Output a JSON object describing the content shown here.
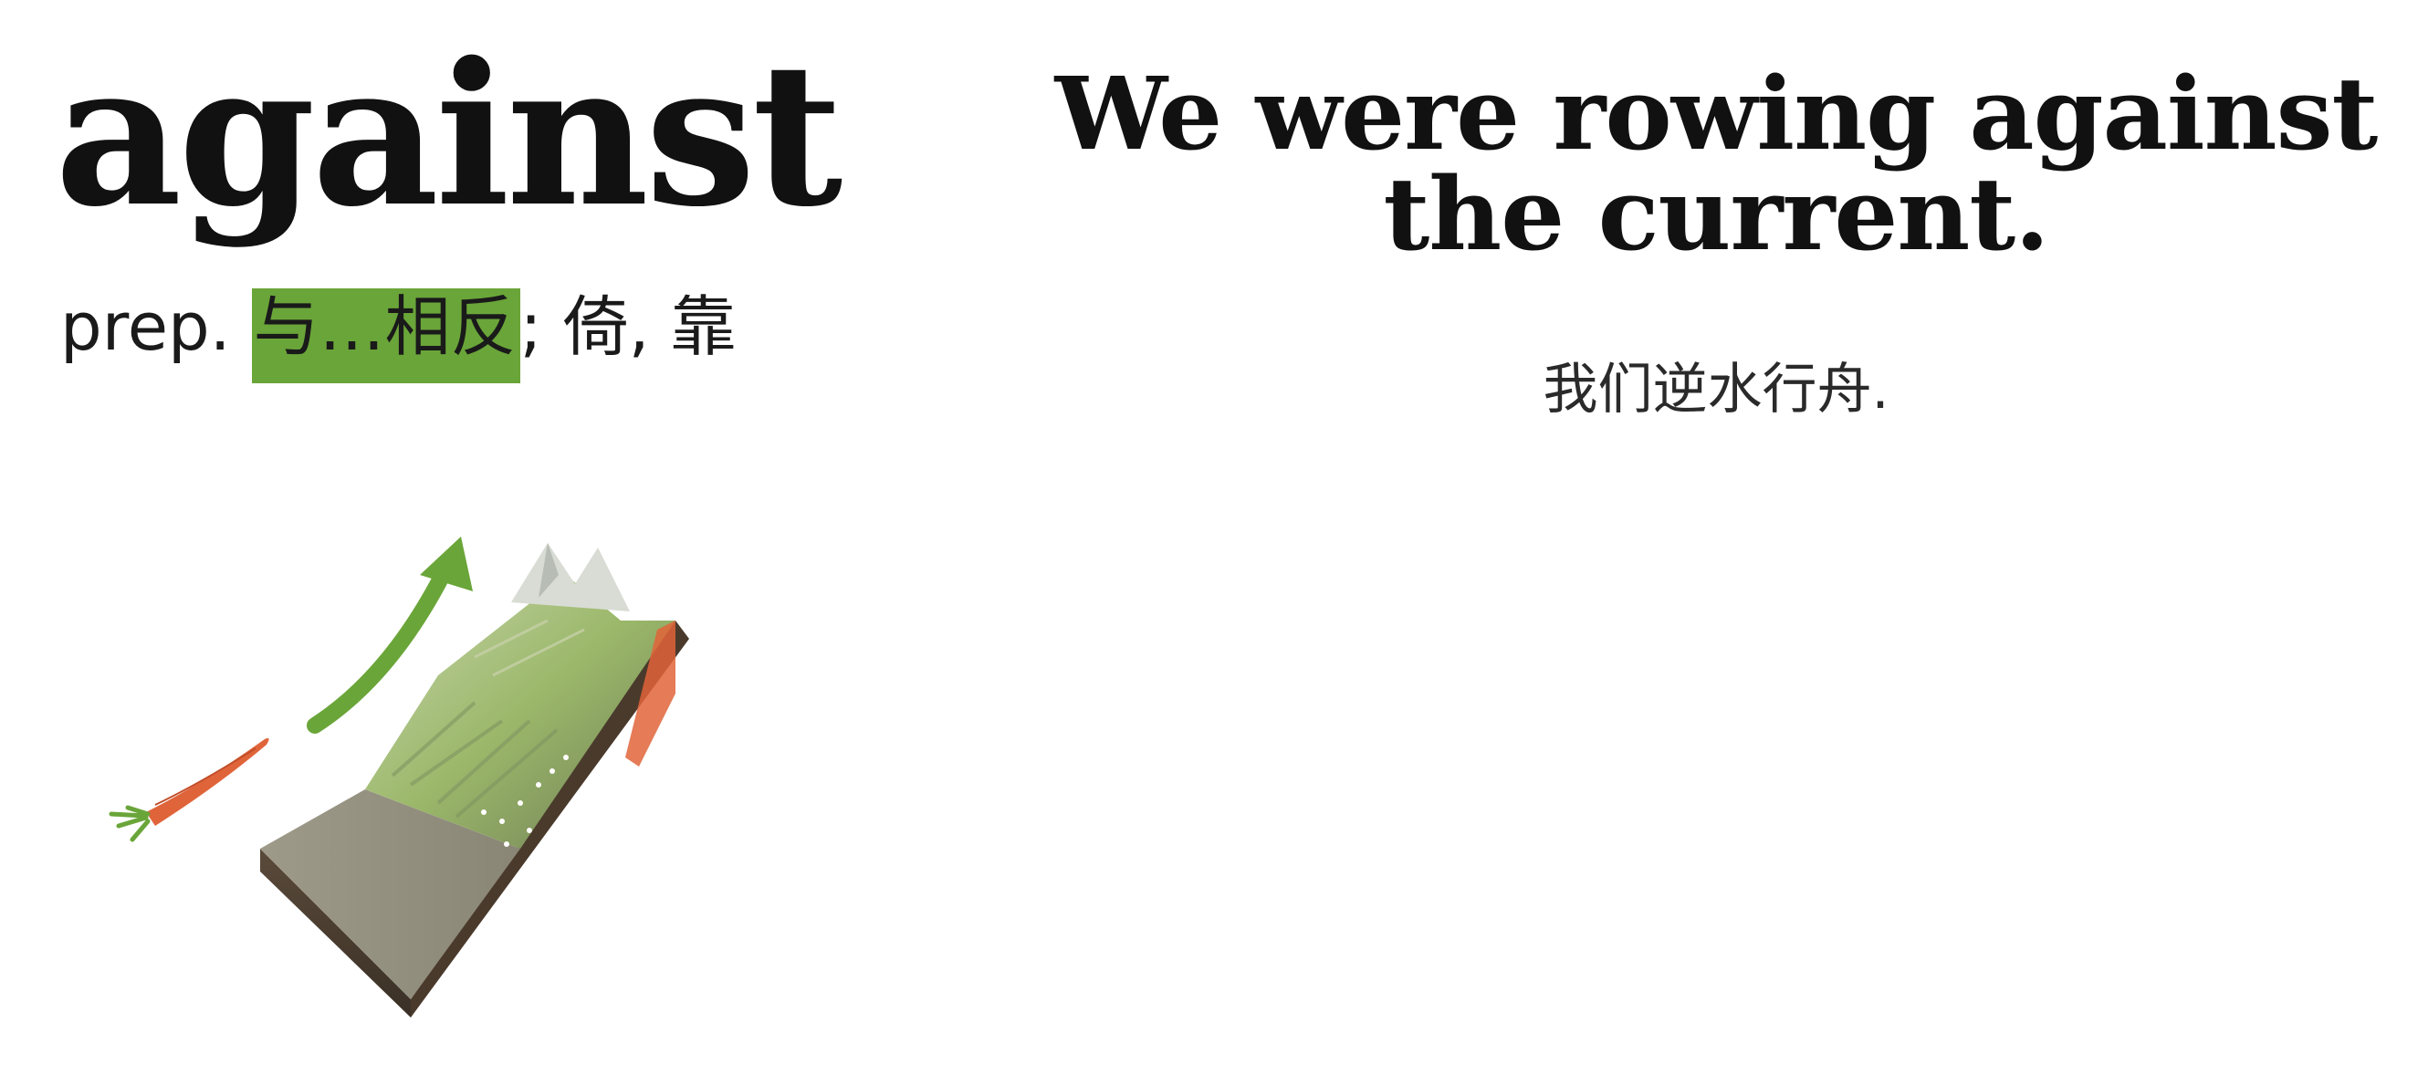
{
  "word": "against",
  "definition": {
    "pos": "prep.",
    "highlight": "与…相反",
    "rest": "; 倚, 靠"
  },
  "example": {
    "sentence_line1": "We were rowing against",
    "sentence_line2": "the current.",
    "translation": "我们逆水行舟."
  },
  "colors": {
    "highlight": "#6aa539",
    "arrow": "#6aa539",
    "carrot": "#e0643a"
  },
  "icons": [
    "carrot-icon",
    "arrow-up-icon",
    "mountain-terrain-icon"
  ]
}
